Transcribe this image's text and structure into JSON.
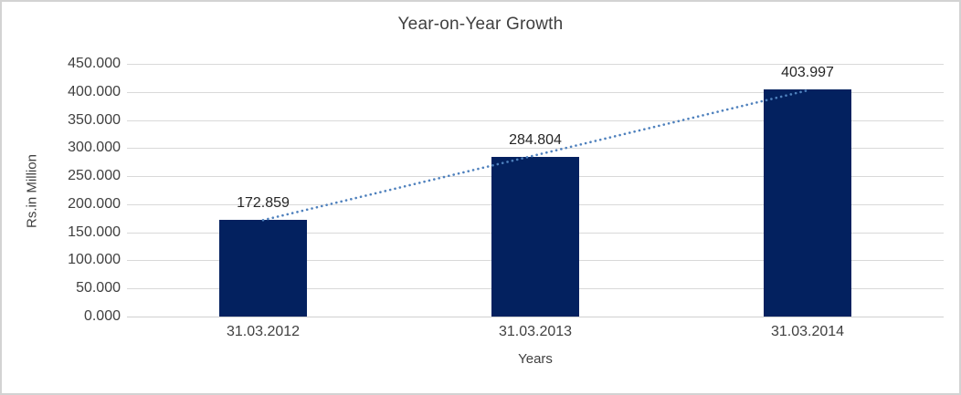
{
  "chart_data": {
    "type": "bar",
    "title": "Year-on-Year Growth",
    "categories": [
      "31.03.2012",
      "31.03.2013",
      "31.03.2014"
    ],
    "values": [
      172.859,
      284.804,
      403.997
    ],
    "data_labels": [
      "172.859",
      "284.804",
      "403.997"
    ],
    "xlabel": "Years",
    "ylabel": "Rs.in Million",
    "ylim": [
      0,
      450
    ],
    "ytick_step": 50,
    "ytick_labels": [
      "0.000",
      "50.000",
      "100.000",
      "150.000",
      "200.000",
      "250.000",
      "300.000",
      "350.000",
      "400.000",
      "450.000"
    ],
    "grid": true,
    "legend": "none",
    "bar_color": "#03215F",
    "gridline_color": "#D9D9D9",
    "text_color": "#404040",
    "trendline": {
      "type": "linear",
      "style": "dotted",
      "color": "#4F81BD"
    }
  }
}
